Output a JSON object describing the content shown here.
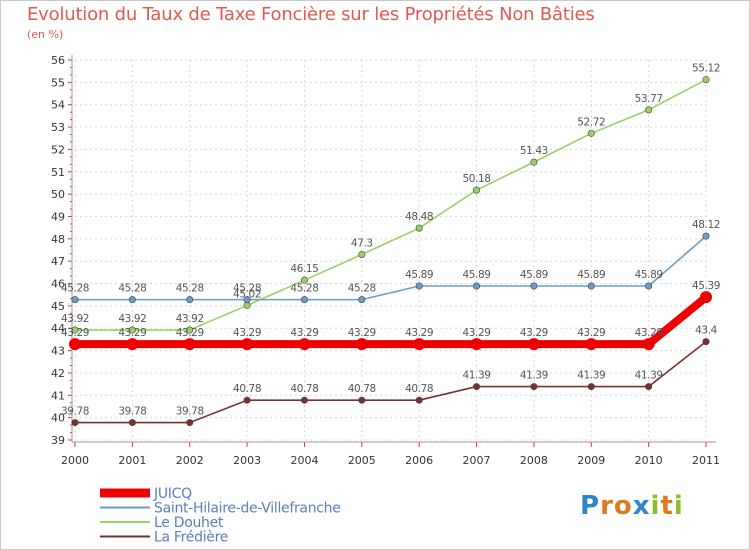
{
  "title": "Evolution du Taux de Taxe Foncière sur les Propriétés Non Bâties",
  "subtitle": "(en %)",
  "logo": {
    "letters": [
      "P",
      "r",
      "o",
      "x",
      "i",
      "t",
      "i"
    ],
    "colors": [
      "#2f86c8",
      "#e07a20",
      "#e07a20",
      "#2f86c8",
      "#8bbf2a",
      "#e07a20",
      "#8bbf2a"
    ]
  },
  "chart_data": {
    "type": "line",
    "title": "Evolution du Taux de Taxe Foncière sur les Propriétés Non Bâties",
    "ylabel": "(en %)",
    "xlabel": "",
    "x": [
      "2000",
      "2001",
      "2002",
      "2003",
      "2004",
      "2005",
      "2006",
      "2007",
      "2008",
      "2009",
      "2010",
      "2011"
    ],
    "ylim": [
      39,
      56
    ],
    "yticks": [
      "39",
      "40",
      "41",
      "42",
      "43",
      "44",
      "45",
      "46",
      "47",
      "48",
      "49",
      "50",
      "51",
      "52",
      "53",
      "54",
      "55",
      "56"
    ],
    "grid": true,
    "legend": "bottom-left",
    "series": [
      {
        "name": "JUICQ",
        "color": "#ee0000",
        "values": [
          43.29,
          43.29,
          43.29,
          43.29,
          43.29,
          43.29,
          43.29,
          43.29,
          43.29,
          43.29,
          43.29,
          45.39
        ],
        "labels": [
          "43.29",
          "43.29",
          "43.29",
          "43.29",
          "43.29",
          "43.29",
          "43.29",
          "43.29",
          "43.29",
          "43.29",
          "43.29",
          "45.39"
        ]
      },
      {
        "name": "Saint-Hilaire-de-Villefranche",
        "color": "#6a9ec8",
        "values": [
          45.28,
          45.28,
          45.28,
          45.28,
          45.28,
          45.28,
          45.89,
          45.89,
          45.89,
          45.89,
          45.89,
          48.12
        ],
        "labels": [
          "45.28",
          "45.28",
          "45.28",
          "45.28",
          "45.28",
          "45.28",
          "45.89",
          "45.89",
          "45.89",
          "45.89",
          "45.89",
          "48.12"
        ]
      },
      {
        "name": "Le Douhet",
        "color": "#9ad068",
        "values": [
          43.92,
          43.92,
          43.92,
          45.02,
          46.15,
          47.3,
          48.48,
          50.18,
          51.43,
          52.72,
          53.77,
          55.12
        ],
        "labels": [
          "43.92",
          "43.92",
          "43.92",
          "45.02",
          "46.15",
          "47.3",
          "48.48",
          "50.18",
          "51.43",
          "52.72",
          "53.77",
          "55.12"
        ]
      },
      {
        "name": "La Frédière",
        "color": "#7a3030",
        "values": [
          39.78,
          39.78,
          39.78,
          40.78,
          40.78,
          40.78,
          40.78,
          41.39,
          41.39,
          41.39,
          41.39,
          43.4
        ],
        "labels": [
          "39.78",
          "39.78",
          "39.78",
          "40.78",
          "40.78",
          "40.78",
          "40.78",
          "41.39",
          "41.39",
          "41.39",
          "41.39",
          "43.4"
        ]
      }
    ]
  }
}
